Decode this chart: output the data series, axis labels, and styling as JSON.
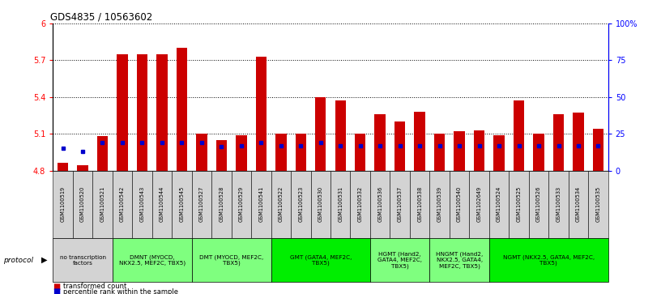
{
  "title": "GDS4835 / 10563602",
  "samples": [
    "GSM1100519",
    "GSM1100520",
    "GSM1100521",
    "GSM1100542",
    "GSM1100543",
    "GSM1100544",
    "GSM1100545",
    "GSM1100527",
    "GSM1100528",
    "GSM1100529",
    "GSM1100541",
    "GSM1100522",
    "GSM1100523",
    "GSM1100530",
    "GSM1100531",
    "GSM1100532",
    "GSM1100536",
    "GSM1100537",
    "GSM1100538",
    "GSM1100539",
    "GSM1100540",
    "GSM1102649",
    "GSM1100524",
    "GSM1100525",
    "GSM1100526",
    "GSM1100533",
    "GSM1100534",
    "GSM1100535"
  ],
  "red_values": [
    4.86,
    4.84,
    5.08,
    5.75,
    5.75,
    5.75,
    5.8,
    5.1,
    5.05,
    5.09,
    5.73,
    5.1,
    5.1,
    5.4,
    5.37,
    5.1,
    5.26,
    5.2,
    5.28,
    5.1,
    5.12,
    5.13,
    5.09,
    5.37,
    5.1,
    5.26,
    5.27,
    5.14
  ],
  "percentile_values": [
    15,
    13,
    19,
    19,
    19,
    19,
    19,
    19,
    16,
    17,
    19,
    17,
    17,
    19,
    17,
    17,
    17,
    17,
    17,
    17,
    17,
    17,
    17,
    17,
    17,
    17,
    17,
    17
  ],
  "protocol_groups": [
    {
      "label": "no transcription\nfactors",
      "start": 0,
      "end": 3,
      "color": "#d3d3d3"
    },
    {
      "label": "DMNT (MYOCD,\nNKX2.5, MEF2C, TBX5)",
      "start": 3,
      "end": 7,
      "color": "#7FFF7F"
    },
    {
      "label": "DMT (MYOCD, MEF2C,\nTBX5)",
      "start": 7,
      "end": 11,
      "color": "#7FFF7F"
    },
    {
      "label": "GMT (GATA4, MEF2C,\nTBX5)",
      "start": 11,
      "end": 16,
      "color": "#00EE00"
    },
    {
      "label": "HGMT (Hand2,\nGATA4, MEF2C,\nTBX5)",
      "start": 16,
      "end": 19,
      "color": "#7FFF7F"
    },
    {
      "label": "HNGMT (Hand2,\nNKX2.5, GATA4,\nMEF2C, TBX5)",
      "start": 19,
      "end": 22,
      "color": "#7FFF7F"
    },
    {
      "label": "NGMT (NKX2.5, GATA4, MEF2C,\nTBX5)",
      "start": 22,
      "end": 28,
      "color": "#00EE00"
    }
  ],
  "ylim_left": [
    4.8,
    6.0
  ],
  "ylim_right": [
    0,
    100
  ],
  "yticks_left": [
    4.8,
    5.1,
    5.4,
    5.7,
    6.0
  ],
  "ytick_labels_left": [
    "4.8",
    "5.1",
    "5.4",
    "5.7",
    "6"
  ],
  "yticks_right": [
    0,
    25,
    50,
    75,
    100
  ],
  "ytick_labels_right": [
    "0",
    "25",
    "50",
    "75",
    "100%"
  ],
  "bar_color": "#cc0000",
  "dot_color": "#0000cc",
  "background_color": "#ffffff",
  "bar_width": 0.55,
  "base_value": 4.8
}
